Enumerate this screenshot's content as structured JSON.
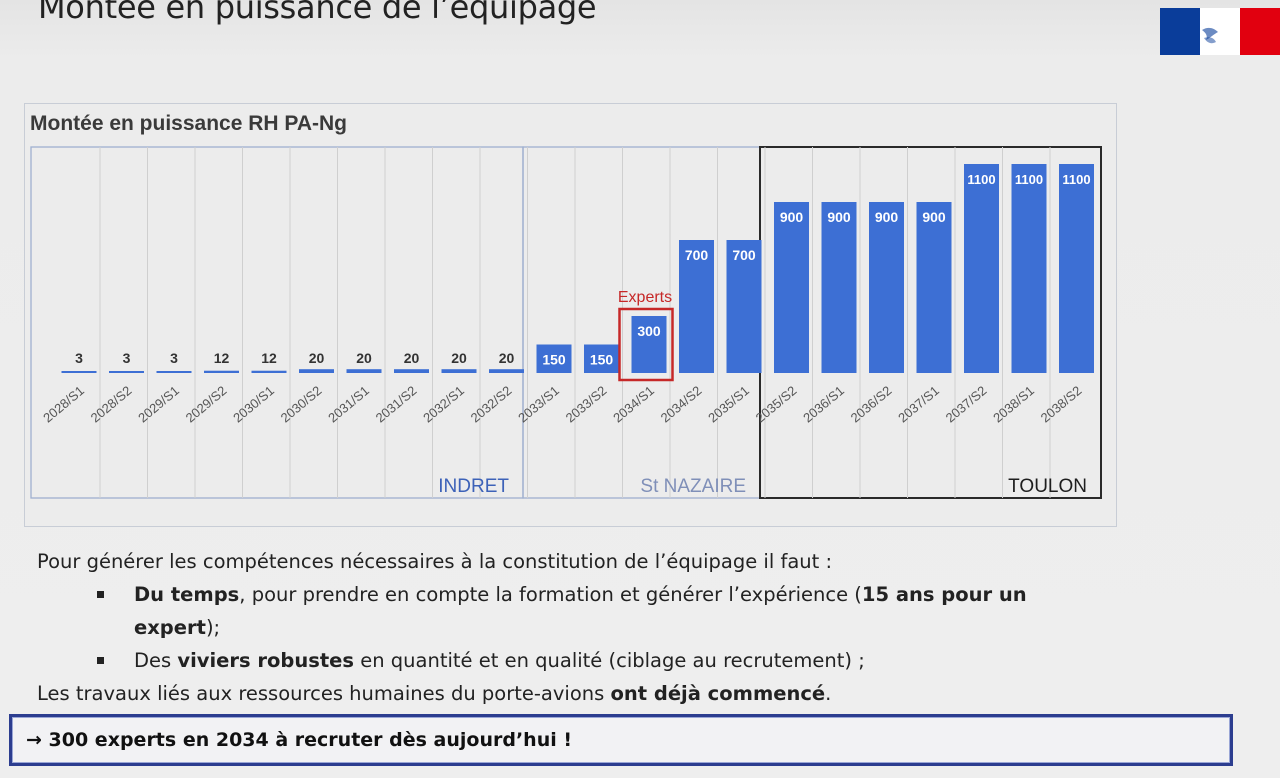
{
  "slide": {
    "title": "Montée en puissance de l’équipage"
  },
  "chart_data": {
    "type": "bar",
    "title": "Montée en puissance RH PA-Ng",
    "categories": [
      "2028/S1",
      "2028/S2",
      "2029/S1",
      "2029/S2",
      "2030/S1",
      "2030/S2",
      "2031/S1",
      "2031/S2",
      "2032/S1",
      "2032/S2",
      "2033/S1",
      "2033/S2",
      "2034/S1",
      "2034/S2",
      "2035/S1",
      "2035/S2",
      "2036/S1",
      "2036/S2",
      "2037/S1",
      "2037/S2",
      "2038/S1",
      "2038/S2"
    ],
    "values": [
      3,
      3,
      3,
      12,
      12,
      20,
      20,
      20,
      20,
      20,
      150,
      150,
      300,
      700,
      700,
      900,
      900,
      900,
      900,
      1100,
      1100,
      1100
    ],
    "ylim": [
      0,
      1100
    ],
    "xlabel": "",
    "ylabel": "",
    "grid": "vertical",
    "bar_color": "#3d6fd4",
    "sites": [
      {
        "name": "INDRET",
        "color": "#3d62b8"
      },
      {
        "name": "St NAZAIRE",
        "color": "#7f8fb8"
      },
      {
        "name": "TOULON",
        "color": "#1e1e1e"
      }
    ],
    "annotation": {
      "label": "Experts",
      "category": "2034/S1",
      "color": "#c62828"
    }
  },
  "text": {
    "intro": "Pour générer les compétences nécessaires à la constitution de l’équipage il faut :",
    "b1_bold": "Du temps",
    "b1_text": ", pour prendre en compte la formation et générer l’expérience (",
    "b1_bold2": "15 ans pour un",
    "b1_bold3": "expert",
    "b1_end": ");",
    "b2_start": "Des ",
    "b2_bold": "viviers robustes",
    "b2_text": " en quantité et en qualité (ciblage au recrutement) ;",
    "closing_start": "Les travaux liés aux ressources humaines du porte-avions ",
    "closing_bold": "ont déjà commencé",
    "closing_end": "."
  },
  "callout": {
    "text": "→ 300 experts en 2034 à recruter dès aujourd’hui !"
  }
}
